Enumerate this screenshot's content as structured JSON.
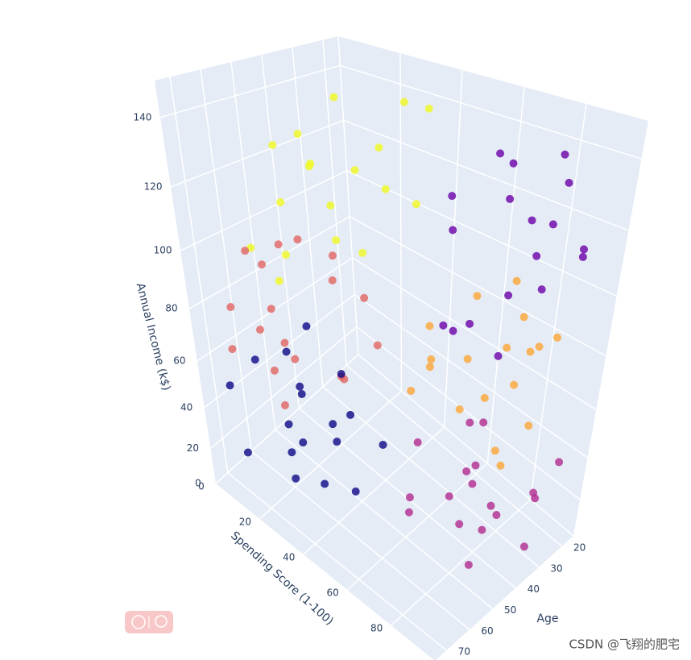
{
  "chart_data": {
    "type": "scatter3d",
    "xaxis_title": "Spending Score (1-100)",
    "yaxis_title": "Age",
    "zaxis_title": "Annual Income (k$)",
    "xlim": [
      0,
      100
    ],
    "ylim": [
      15,
      75
    ],
    "zlim": [
      0,
      150
    ],
    "xticks": [
      0,
      20,
      40,
      60,
      80
    ],
    "yticks": [
      20,
      30,
      40,
      50,
      60,
      70
    ],
    "zticks": [
      0,
      20,
      40,
      60,
      80,
      100,
      120,
      140
    ],
    "grid": true,
    "series": [
      {
        "color": "#f0f921",
        "x": [
          8,
          15,
          22,
          30,
          12,
          38,
          25,
          5,
          18,
          42,
          33,
          10,
          27,
          20,
          36,
          14,
          40,
          28
        ],
        "y": [
          25,
          40,
          55,
          30,
          48,
          22,
          60,
          35,
          28,
          45,
          52,
          58,
          20,
          38,
          33,
          50,
          27,
          43
        ],
        "z": [
          135,
          120,
          100,
          128,
          110,
          140,
          95,
          125,
          115,
          105,
          132,
          98,
          138,
          108,
          118,
          130,
          112,
          102
        ]
      },
      {
        "color": "#6a00a8",
        "x": [
          65,
          72,
          80,
          90,
          95,
          68,
          85,
          78,
          92,
          62,
          88,
          75,
          70,
          98,
          82,
          66,
          94,
          86
        ],
        "y": [
          20,
          25,
          30,
          18,
          35,
          40,
          22,
          44,
          28,
          33,
          38,
          19,
          27,
          24,
          42,
          36,
          31,
          21
        ],
        "z": [
          120,
          135,
          100,
          110,
          130,
          90,
          140,
          95,
          125,
          115,
          88,
          105,
          138,
          118,
          98,
          128,
          108,
          132
        ]
      },
      {
        "color": "#e16462",
        "x": [
          5,
          12,
          20,
          28,
          35,
          42,
          8,
          18,
          25,
          32,
          40,
          15,
          22,
          38,
          10,
          30,
          45,
          3
        ],
        "y": [
          45,
          55,
          62,
          70,
          50,
          42,
          66,
          48,
          58,
          68,
          44,
          72,
          40,
          52,
          60,
          64,
          56,
          50
        ],
        "z": [
          90,
          75,
          60,
          85,
          95,
          70,
          80,
          100,
          65,
          58,
          88,
          72,
          92,
          62,
          98,
          78,
          68,
          84
        ]
      },
      {
        "color": "#fca636",
        "x": [
          58,
          65,
          72,
          80,
          88,
          95,
          60,
          70,
          78,
          85,
          92,
          62,
          75,
          82,
          68,
          90,
          56,
          86
        ],
        "y": [
          22,
          30,
          38,
          25,
          33,
          42,
          45,
          20,
          28,
          36,
          24,
          40,
          32,
          21,
          44,
          29,
          35,
          27
        ],
        "z": [
          85,
          70,
          60,
          90,
          75,
          55,
          65,
          95,
          80,
          50,
          88,
          72,
          62,
          78,
          92,
          58,
          68,
          82
        ]
      },
      {
        "color": "#0d0887",
        "x": [
          5,
          12,
          20,
          28,
          35,
          42,
          8,
          18,
          25,
          32,
          40,
          15,
          22,
          38,
          10,
          30,
          45,
          2
        ],
        "y": [
          38,
          48,
          55,
          65,
          70,
          42,
          60,
          52,
          46,
          68,
          58,
          72,
          40,
          62,
          50,
          44,
          56,
          66
        ],
        "z": [
          50,
          35,
          20,
          45,
          30,
          25,
          55,
          40,
          15,
          38,
          48,
          28,
          42,
          22,
          52,
          32,
          18,
          44
        ]
      },
      {
        "color": "#b12a90",
        "x": [
          58,
          66,
          74,
          82,
          90,
          98,
          62,
          70,
          78,
          86,
          94,
          60,
          72,
          84,
          92,
          68,
          80,
          96
        ],
        "y": [
          22,
          30,
          40,
          50,
          25,
          35,
          45,
          55,
          28,
          38,
          20,
          48,
          33,
          42,
          52,
          26,
          36,
          30
        ],
        "z": [
          30,
          20,
          10,
          40,
          25,
          15,
          45,
          35,
          5,
          28,
          38,
          12,
          22,
          48,
          18,
          42,
          8,
          32
        ]
      }
    ]
  },
  "watermark": "CSDN @飞翔的肥宅"
}
